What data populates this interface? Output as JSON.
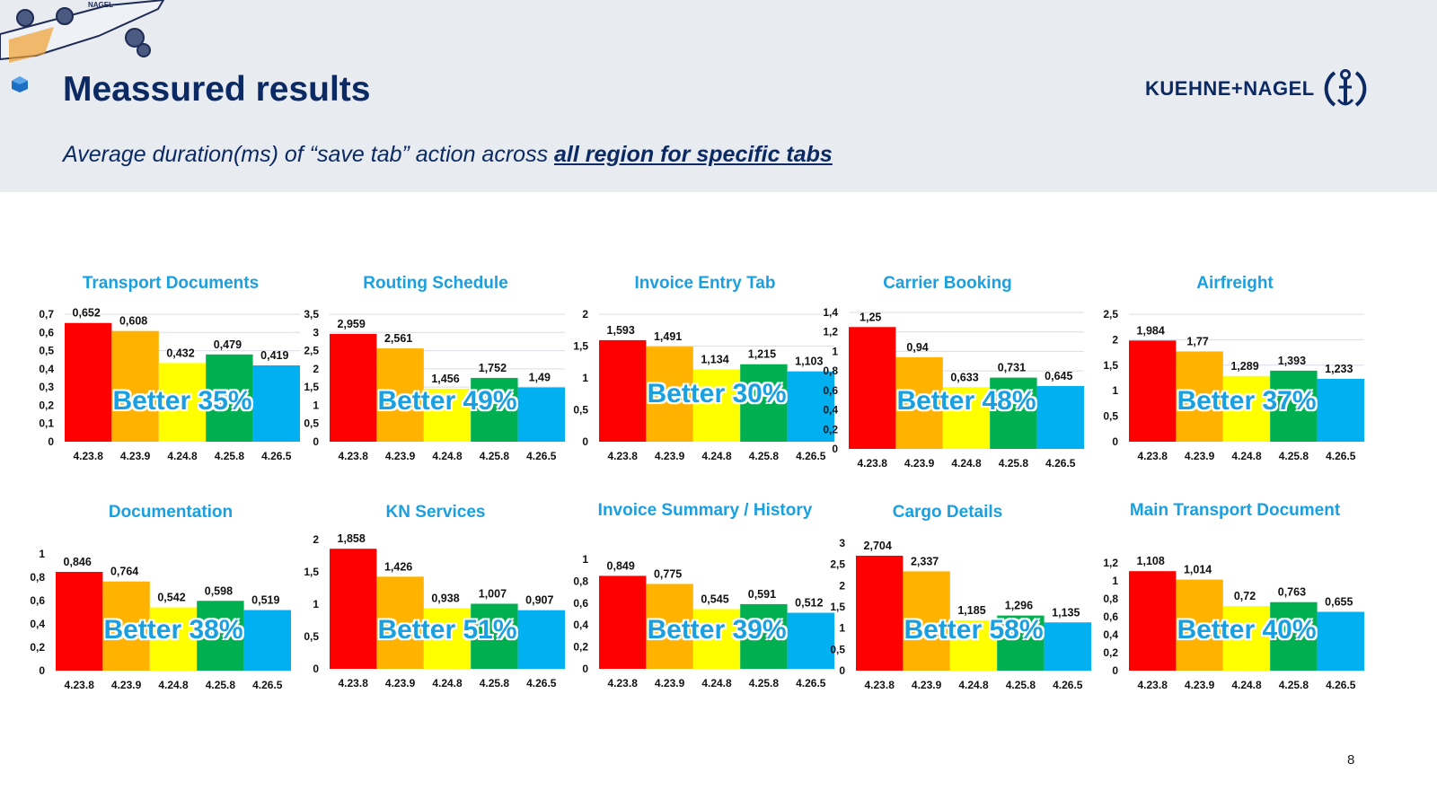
{
  "header": {
    "title": "Meassured results",
    "subtitle_prefix": "Average duration(ms) of “save tab” action across ",
    "subtitle_emphasis": "all region for specific tabs",
    "logo_text": "KUEHNE+NAGEL",
    "logo_icon": "anchor-icon",
    "plane_text": "NAGEL"
  },
  "page_number": "8",
  "colors": {
    "header_band": "#e8ebf0",
    "title": "#0b2a63",
    "chart_title": "#1aa0e0",
    "bars": [
      "#ff0000",
      "#ffb300",
      "#ffff00",
      "#00b050",
      "#00b0f0"
    ]
  },
  "chart_data": [
    {
      "type": "bar",
      "title": "Transport Documents",
      "categories": [
        "4.23.8",
        "4.23.9",
        "4.24.8",
        "4.25.8",
        "4.26.5"
      ],
      "values": [
        0.652,
        0.608,
        0.432,
        0.479,
        0.419
      ],
      "labels": [
        "0,652",
        "0,608",
        "0,432",
        "0,479",
        "0,419"
      ],
      "ylim": [
        0,
        0.7
      ],
      "yticks": [
        "0",
        "0,1",
        "0,2",
        "0,3",
        "0,4",
        "0,5",
        "0,6",
        "0,7"
      ],
      "annotation": "Better 35%",
      "grid": true
    },
    {
      "type": "bar",
      "title": "Routing Schedule",
      "categories": [
        "4.23.8",
        "4.23.9",
        "4.24.8",
        "4.25.8",
        "4.26.5"
      ],
      "values": [
        2.959,
        2.561,
        1.456,
        1.752,
        1.49
      ],
      "labels": [
        "2,959",
        "2,561",
        "1,456",
        "1,752",
        "1,49"
      ],
      "ylim": [
        0,
        3.5
      ],
      "yticks": [
        "0",
        "0,5",
        "1",
        "1,5",
        "2",
        "2,5",
        "3",
        "3,5"
      ],
      "annotation": "Better 49%",
      "grid": true
    },
    {
      "type": "bar",
      "title": "Invoice Entry Tab",
      "categories": [
        "4.23.8",
        "4.23.9",
        "4.24.8",
        "4.25.8",
        "4.26.5"
      ],
      "values": [
        1.593,
        1.491,
        1.134,
        1.215,
        1.103
      ],
      "labels": [
        "1,593",
        "1,491",
        "1,134",
        "1,215",
        "1,103"
      ],
      "ylim": [
        0,
        2
      ],
      "yticks": [
        "0",
        "0,5",
        "1",
        "1,5",
        "2"
      ],
      "annotation": "Better 30%",
      "grid": true
    },
    {
      "type": "bar",
      "title": "Carrier Booking",
      "categories": [
        "4.23.8",
        "4.23.9",
        "4.24.8",
        "4.25.8",
        "4.26.5"
      ],
      "values": [
        1.25,
        0.94,
        0.633,
        0.731,
        0.645
      ],
      "labels": [
        "1,25",
        "0,94",
        "0,633",
        "0,731",
        "0,645"
      ],
      "ylim": [
        0,
        1.4
      ],
      "yticks": [
        "0",
        "0,2",
        "0,4",
        "0,6",
        "0,8",
        "1",
        "1,2",
        "1,4"
      ],
      "annotation": "Better 48%",
      "grid": true
    },
    {
      "type": "bar",
      "title": "Airfreight",
      "categories": [
        "4.23.8",
        "4.23.9",
        "4.24.8",
        "4.25.8",
        "4.26.5"
      ],
      "values": [
        1.984,
        1.77,
        1.289,
        1.393,
        1.233
      ],
      "labels": [
        "1,984",
        "1,77",
        "1,289",
        "1,393",
        "1,233"
      ],
      "ylim": [
        0,
        2.5
      ],
      "yticks": [
        "0",
        "0,5",
        "1",
        "1,5",
        "2",
        "2,5"
      ],
      "annotation": "Better 37%",
      "grid": true
    },
    {
      "type": "bar",
      "title": "Documentation",
      "categories": [
        "4.23.8",
        "4.23.9",
        "4.24.8",
        "4.25.8",
        "4.26.5"
      ],
      "values": [
        0.846,
        0.764,
        0.542,
        0.598,
        0.519
      ],
      "labels": [
        "0,846",
        "0,764",
        "0,542",
        "0,598",
        "0,519"
      ],
      "ylim": [
        0,
        1
      ],
      "yticks": [
        "0",
        "0,2",
        "0,4",
        "0,6",
        "0,8",
        "1"
      ],
      "annotation": "Better 38%",
      "grid": false
    },
    {
      "type": "bar",
      "title": "KN Services",
      "categories": [
        "4.23.8",
        "4.23.9",
        "4.24.8",
        "4.25.8",
        "4.26.5"
      ],
      "values": [
        1.858,
        1.426,
        0.938,
        1.007,
        0.907
      ],
      "labels": [
        "1,858",
        "1,426",
        "0,938",
        "1,007",
        "0,907"
      ],
      "ylim": [
        0,
        2
      ],
      "yticks": [
        "0",
        "0,5",
        "1",
        "1,5",
        "2"
      ],
      "annotation": "Better 51%",
      "grid": false
    },
    {
      "type": "bar",
      "title": "Invoice Summary / History",
      "categories": [
        "4.23.8",
        "4.23.9",
        "4.24.8",
        "4.25.8",
        "4.26.5"
      ],
      "values": [
        0.849,
        0.775,
        0.545,
        0.591,
        0.512
      ],
      "labels": [
        "0,849",
        "0,775",
        "0,545",
        "0,591",
        "0,512"
      ],
      "ylim": [
        0,
        1
      ],
      "yticks": [
        "0",
        "0,2",
        "0,4",
        "0,6",
        "0,8",
        "1"
      ],
      "annotation": "Better 39%",
      "grid": false
    },
    {
      "type": "bar",
      "title": "Cargo Details",
      "categories": [
        "4.23.8",
        "4.23.9",
        "4.24.8",
        "4.25.8",
        "4.26.5"
      ],
      "values": [
        2.704,
        2.337,
        1.185,
        1.296,
        1.135
      ],
      "labels": [
        "2,704",
        "2,337",
        "1,185",
        "1,296",
        "1,135"
      ],
      "ylim": [
        0,
        3
      ],
      "yticks": [
        "0",
        "0,5",
        "1",
        "1,5",
        "2",
        "2,5",
        "3"
      ],
      "annotation": "Better 58%",
      "grid": false
    },
    {
      "type": "bar",
      "title": "Main Transport Document",
      "categories": [
        "4.23.8",
        "4.23.9",
        "4.24.8",
        "4.25.8",
        "4.26.5"
      ],
      "values": [
        1.108,
        1.014,
        0.72,
        0.763,
        0.655
      ],
      "labels": [
        "1,108",
        "1,014",
        "0,72",
        "0,763",
        "0,655"
      ],
      "ylim": [
        0,
        1.2
      ],
      "yticks": [
        "0",
        "0,2",
        "0,4",
        "0,6",
        "0,8",
        "1",
        "1,2"
      ],
      "annotation": "Better 40%",
      "grid": false
    }
  ]
}
